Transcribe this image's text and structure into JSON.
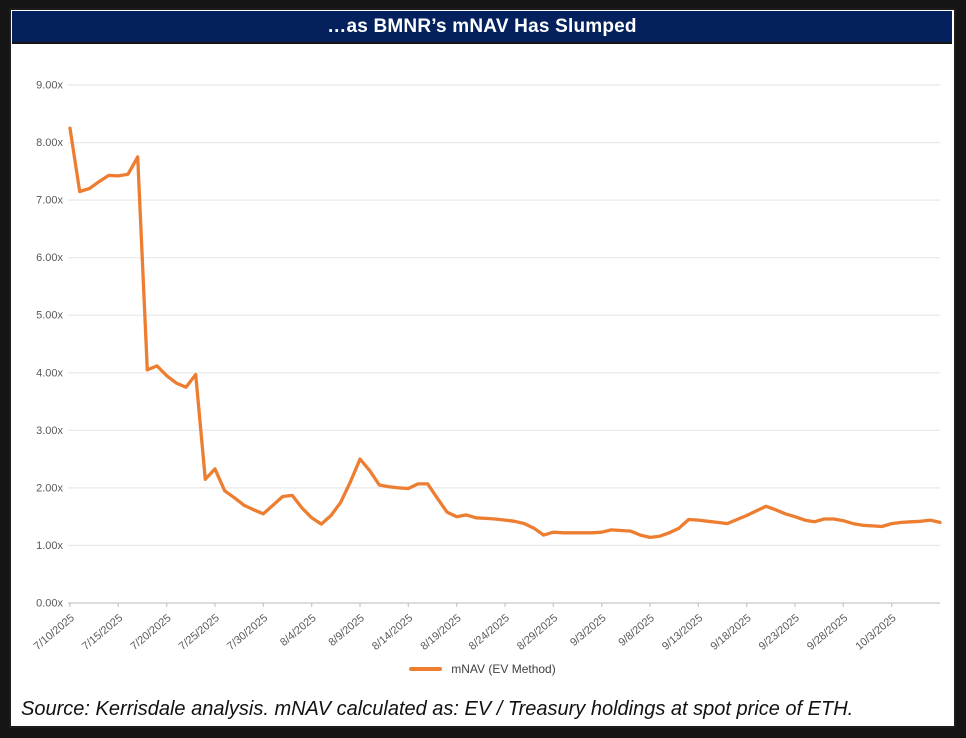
{
  "window": {
    "background": "#141414",
    "card_background": "#FFFFFF",
    "card_border": "#1D1D1D"
  },
  "colors": {
    "navy": "#04215E",
    "orange": "#ED7D31",
    "gridline": "#E8E8E8",
    "axis_line": "#C6C6C6",
    "tick_label": "#595959",
    "legend_text": "#404040"
  },
  "header": {
    "title": "…as BMNR’s mNAV Has Slumped"
  },
  "legend": {
    "label": "mNAV (EV Method)"
  },
  "source_note": "Source: Kerrisdale analysis. mNAV calculated as: EV / Treasury holdings at spot price of ETH.",
  "chart_data": {
    "type": "line",
    "title": "…as BMNR’s mNAV Has Slumped",
    "xlabel": "",
    "ylabel": "",
    "ylim": [
      0,
      9
    ],
    "grid": "horizontal",
    "legend_position": "bottom-center",
    "y_tick_labels": [
      "0.00x",
      "1.00x",
      "2.00x",
      "3.00x",
      "4.00x",
      "5.00x",
      "6.00x",
      "7.00x",
      "8.00x",
      "9.00x"
    ],
    "x_tick_labels": [
      "7/10/2025",
      "7/15/2025",
      "7/20/2025",
      "7/25/2025",
      "7/30/2025",
      "8/4/2025",
      "8/9/2025",
      "8/14/2025",
      "8/19/2025",
      "8/24/2025",
      "8/29/2025",
      "9/3/2025",
      "9/8/2025",
      "9/13/2025",
      "9/18/2025",
      "9/23/2025",
      "9/28/2025",
      "10/3/2025"
    ],
    "x_tick_interval_days": 5,
    "series": [
      {
        "name": "mNAV (EV Method)",
        "color": "#ED7D31",
        "dates": [
          "7/10/2025",
          "7/11/2025",
          "7/12/2025",
          "7/13/2025",
          "7/14/2025",
          "7/15/2025",
          "7/16/2025",
          "7/17/2025",
          "7/18/2025",
          "7/19/2025",
          "7/20/2025",
          "7/21/2025",
          "7/22/2025",
          "7/23/2025",
          "7/24/2025",
          "7/25/2025",
          "7/26/2025",
          "7/27/2025",
          "7/28/2025",
          "7/29/2025",
          "7/30/2025",
          "7/31/2025",
          "8/1/2025",
          "8/2/2025",
          "8/3/2025",
          "8/4/2025",
          "8/5/2025",
          "8/6/2025",
          "8/7/2025",
          "8/8/2025",
          "8/9/2025",
          "8/10/2025",
          "8/11/2025",
          "8/12/2025",
          "8/13/2025",
          "8/14/2025",
          "8/15/2025",
          "8/16/2025",
          "8/17/2025",
          "8/18/2025",
          "8/19/2025",
          "8/20/2025",
          "8/21/2025",
          "8/22/2025",
          "8/23/2025",
          "8/24/2025",
          "8/25/2025",
          "8/26/2025",
          "8/27/2025",
          "8/28/2025",
          "8/29/2025",
          "8/30/2025",
          "8/31/2025",
          "9/1/2025",
          "9/2/2025",
          "9/3/2025",
          "9/4/2025",
          "9/5/2025",
          "9/6/2025",
          "9/7/2025",
          "9/8/2025",
          "9/9/2025",
          "9/10/2025",
          "9/11/2025",
          "9/12/2025",
          "9/13/2025",
          "9/14/2025",
          "9/15/2025",
          "9/16/2025",
          "9/17/2025",
          "9/18/2025",
          "9/19/2025",
          "9/20/2025",
          "9/21/2025",
          "9/22/2025",
          "9/23/2025",
          "9/24/2025",
          "9/25/2025",
          "9/26/2025",
          "9/27/2025",
          "9/28/2025",
          "9/29/2025",
          "9/30/2025",
          "10/1/2025",
          "10/2/2025",
          "10/3/2025",
          "10/4/2025",
          "10/5/2025",
          "10/6/2025",
          "10/7/2025",
          "10/8/2025"
        ],
        "values": [
          8.25,
          7.15,
          7.2,
          7.32,
          7.43,
          7.42,
          7.45,
          7.75,
          4.05,
          4.12,
          3.95,
          3.82,
          3.75,
          3.97,
          2.15,
          2.33,
          1.95,
          1.83,
          1.7,
          1.62,
          1.55,
          1.7,
          1.85,
          1.87,
          1.65,
          1.48,
          1.37,
          1.52,
          1.75,
          2.1,
          2.5,
          2.3,
          2.05,
          2.02,
          2.0,
          1.99,
          2.07,
          2.07,
          1.82,
          1.58,
          1.5,
          1.53,
          1.48,
          1.47,
          1.46,
          1.44,
          1.42,
          1.38,
          1.3,
          1.18,
          1.23,
          1.22,
          1.22,
          1.22,
          1.22,
          1.23,
          1.27,
          1.26,
          1.25,
          1.18,
          1.14,
          1.16,
          1.22,
          1.3,
          1.45,
          1.44,
          1.42,
          1.4,
          1.38,
          1.45,
          1.52,
          1.6,
          1.68,
          1.62,
          1.55,
          1.5,
          1.44,
          1.41,
          1.46,
          1.46,
          1.43,
          1.38,
          1.35,
          1.34,
          1.33,
          1.38,
          1.4,
          1.41,
          1.42,
          1.44,
          1.4
        ]
      }
    ]
  }
}
